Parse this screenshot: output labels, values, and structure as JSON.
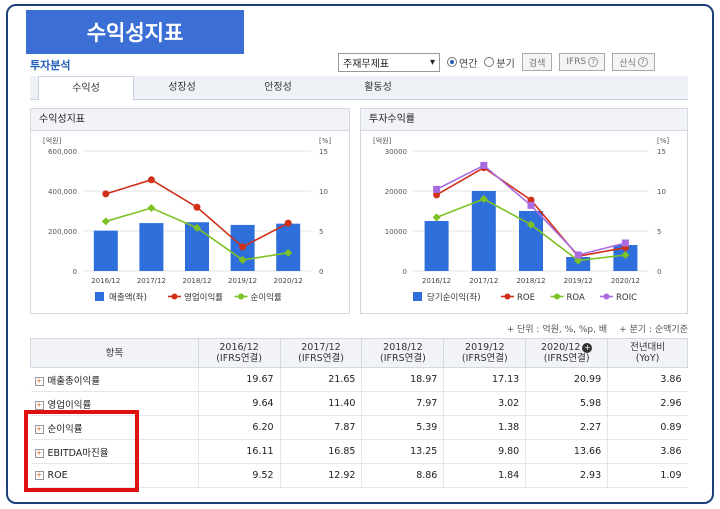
{
  "banner": {
    "title": "수익성지표"
  },
  "section": {
    "title": "투자분석"
  },
  "controls": {
    "select_value": "주재무제표",
    "radio_annual": "연간",
    "radio_quarter": "분기",
    "search_button": "검색",
    "ifrs_button": "IFRS",
    "calc_button": "산식"
  },
  "tabs": [
    "수익성",
    "성장성",
    "안정성",
    "활동성"
  ],
  "left_panel": {
    "title": "수익성지표"
  },
  "right_panel": {
    "title": "투자수익률"
  },
  "notes": {
    "unit": "+ 단위 : 억원, %, %p, 배",
    "quarter": "+ 분기 : 순액기준"
  },
  "table": {
    "header_item": "항목",
    "columns": [
      {
        "line1": "2016/12",
        "line2": "(IFRS연결)"
      },
      {
        "line1": "2017/12",
        "line2": "(IFRS연결)"
      },
      {
        "line1": "2018/12",
        "line2": "(IFRS연결)"
      },
      {
        "line1": "2019/12",
        "line2": "(IFRS연결)"
      },
      {
        "line1": "2020/12",
        "line2": "(IFRS연결)"
      },
      {
        "line1": "전년대비",
        "line2": "(YoY)"
      }
    ],
    "rows": [
      {
        "label": "매출총이익률",
        "values": [
          "19.67",
          "21.65",
          "18.97",
          "17.13",
          "20.99",
          "3.86"
        ]
      },
      {
        "label": "영업이익률",
        "values": [
          "9.64",
          "11.40",
          "7.97",
          "3.02",
          "5.98",
          "2.96"
        ]
      },
      {
        "label": "순이익률",
        "values": [
          "6.20",
          "7.87",
          "5.39",
          "1.38",
          "2.27",
          "0.89"
        ]
      },
      {
        "label": "EBITDA마진율",
        "values": [
          "16.11",
          "16.85",
          "13.25",
          "9.80",
          "13.66",
          "3.86"
        ]
      },
      {
        "label": "ROE",
        "values": [
          "9.52",
          "12.92",
          "8.86",
          "1.84",
          "2.93",
          "1.09"
        ]
      }
    ]
  },
  "chart_data": [
    {
      "type": "bar",
      "title": "수익성지표",
      "left_unit": "[억원]",
      "right_unit": "[%]",
      "categories": [
        "2016/12",
        "2017/12",
        "2018/12",
        "2019/12",
        "2020/12"
      ],
      "left_ticks": [
        "0",
        "200,000",
        "400,000",
        "600,000"
      ],
      "right_ticks": [
        "0",
        "5",
        "10",
        "15"
      ],
      "ylim_left": [
        0,
        600000
      ],
      "ylim_right": [
        0,
        15
      ],
      "bar_series": {
        "name": "매출액(좌)",
        "color": "#2f6fdc",
        "values": [
          201900,
          239600,
          243800,
          230400,
          236800
        ]
      },
      "line_series": [
        {
          "name": "영업이익률",
          "color": "#d0301a",
          "values": [
            9.64,
            11.4,
            7.97,
            3.02,
            5.98
          ]
        },
        {
          "name": "순이익률",
          "color": "#7cc224",
          "values": [
            6.2,
            7.87,
            5.39,
            1.38,
            2.27
          ]
        }
      ],
      "legend": "bottom"
    },
    {
      "type": "bar",
      "title": "투자수익률",
      "left_unit": "[억원]",
      "right_unit": "[%]",
      "categories": [
        "2016/12",
        "2017/12",
        "2018/12",
        "2019/12",
        "2020/12"
      ],
      "left_ticks": [
        "0",
        "10000",
        "20000",
        "30000"
      ],
      "right_ticks": [
        "0",
        "5",
        "10",
        "15"
      ],
      "ylim_left": [
        0,
        30000
      ],
      "ylim_right": [
        0,
        15
      ],
      "bar_series": {
        "name": "당기순이익(좌)",
        "color": "#2f6fdc",
        "values": [
          12500,
          20000,
          15000,
          3500,
          6500
        ]
      },
      "line_series": [
        {
          "name": "ROE",
          "color": "#d0301a",
          "values": [
            9.52,
            12.92,
            8.86,
            1.84,
            2.93
          ]
        },
        {
          "name": "ROA",
          "color": "#7cc224",
          "values": [
            6.7,
            9.0,
            5.8,
            1.3,
            2.0
          ]
        },
        {
          "name": "ROIC",
          "color": "#a86be0",
          "values": [
            10.2,
            13.2,
            8.2,
            2.0,
            3.5
          ]
        }
      ],
      "legend": "bottom"
    }
  ]
}
